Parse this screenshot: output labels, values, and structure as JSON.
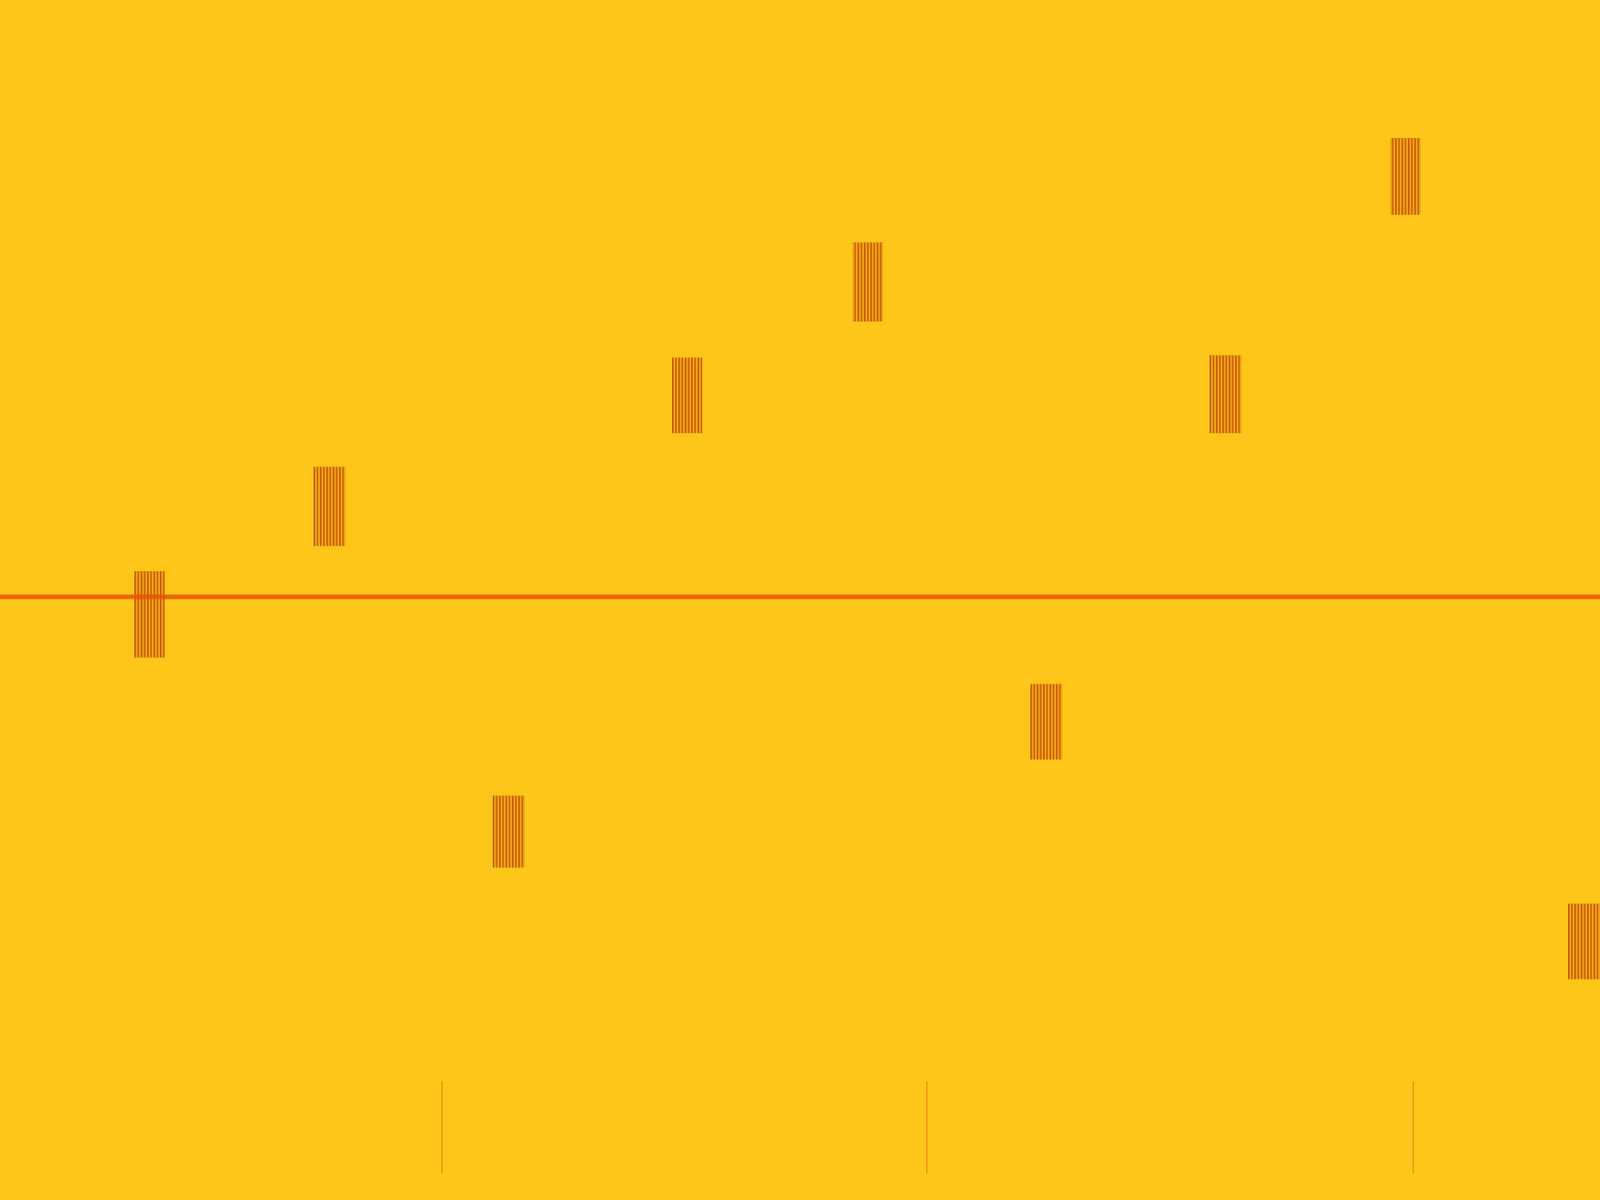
{
  "chart_data": {
    "type": "spectrogram",
    "tick_labels": false,
    "xlim": [
      0,
      100
    ],
    "ylim": [
      0,
      100
    ],
    "color": "#ffc61a",
    "bursts": {
      "x0": [
        8.4,
        19.6,
        30.8,
        42.0,
        53.3,
        64.4,
        75.6,
        86.9,
        98.0
      ],
      "x1": [
        10.3,
        21.6,
        32.8,
        43.9,
        55.2,
        66.4,
        77.6,
        88.8,
        100
      ],
      "y0": [
        45.2,
        54.5,
        27.7,
        63.9,
        73.2,
        36.7,
        63.9,
        82.1,
        18.4
      ],
      "y1": [
        52.4,
        61.1,
        33.7,
        70.2,
        79.8,
        43.0,
        70.4,
        88.5,
        24.7
      ],
      "color": "#b83a00"
    },
    "carrier": {
      "y": 50.3,
      "color": "#e8520a"
    },
    "impulses": {
      "x": [
        27.6,
        57.9,
        88.3
      ],
      "y0": [
        2.2,
        2.2,
        2.2
      ],
      "y1": [
        9.9,
        9.9,
        9.9
      ],
      "color": "#e07a10"
    }
  }
}
